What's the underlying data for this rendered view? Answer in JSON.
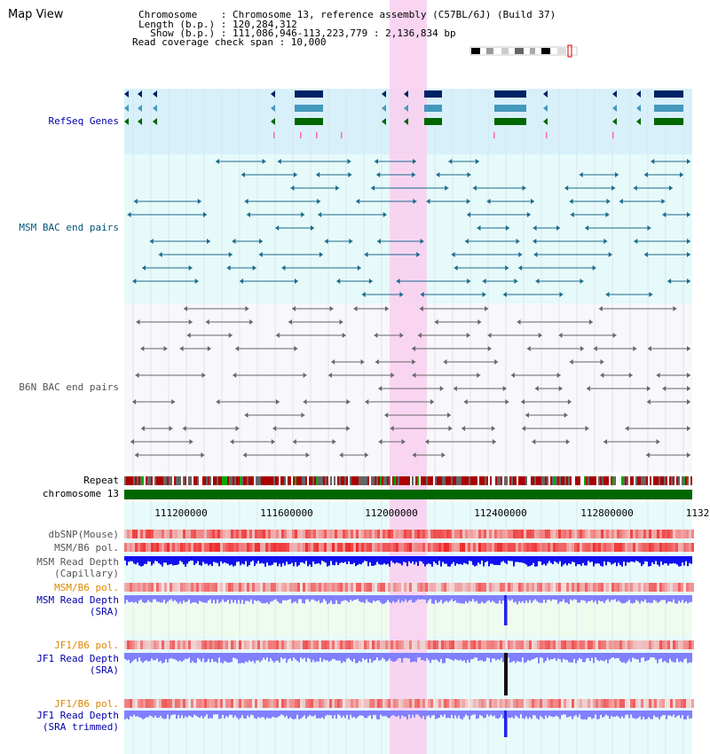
{
  "title": "Map View",
  "info": {
    "chromosome_line": "Chromosome    : Chromosome 13, reference assembly (C57BL/6J) (Build 37)",
    "length_line": "Length (b.p.) : 120,284,312",
    "show_line": "  Show (b.p.) : 111,086,946-113,223,779 : 2,136,834 bp",
    "coverage_line": "Read coverage check span : 10,000"
  },
  "tracks": {
    "refseq": "RefSeq Genes",
    "msm_bac": "MSM BAC end pairs",
    "b6n_bac": "B6N BAC end pairs",
    "repeat": "Repeat",
    "chromosome": "chromosome 13",
    "dbsnp": "dbSNP(Mouse)",
    "msm_b6_pol_1": "MSM/B6 pol.",
    "msm_depth_cap_1": "MSM Read Depth",
    "msm_depth_cap_2": "(Capillary)",
    "msm_b6_pol_2": "MSM/B6 pol.",
    "msm_depth_sra_1": "MSM Read Depth",
    "msm_depth_sra_2": "(SRA)",
    "jf1_b6_pol_1": "JF1/B6 pol.",
    "jf1_depth_sra_1": "JF1 Read Depth",
    "jf1_depth_sra_2": "(SRA)",
    "jf1_b6_pol_2": "JF1/B6 pol.",
    "jf1_depth_trim_1": "JF1 Read Depth",
    "jf1_depth_trim_2": "(SRA trimmed)"
  },
  "axis_ticks": [
    "111200000",
    "111600000",
    "112000000",
    "112400000",
    "112800000",
    "1132"
  ],
  "colors": {
    "label_blue": "#0000aa",
    "label_teal": "#005577",
    "label_gray": "#555555",
    "label_orange": "#dd8800",
    "highlight": "#f8d0f0",
    "refseq_bg": "#d8f0fa",
    "msm_bac_bg": "#e6fafa",
    "chromosome_green": "#006600",
    "depth_blue": "#1010f0",
    "depth_light": "#8080ff"
  }
}
